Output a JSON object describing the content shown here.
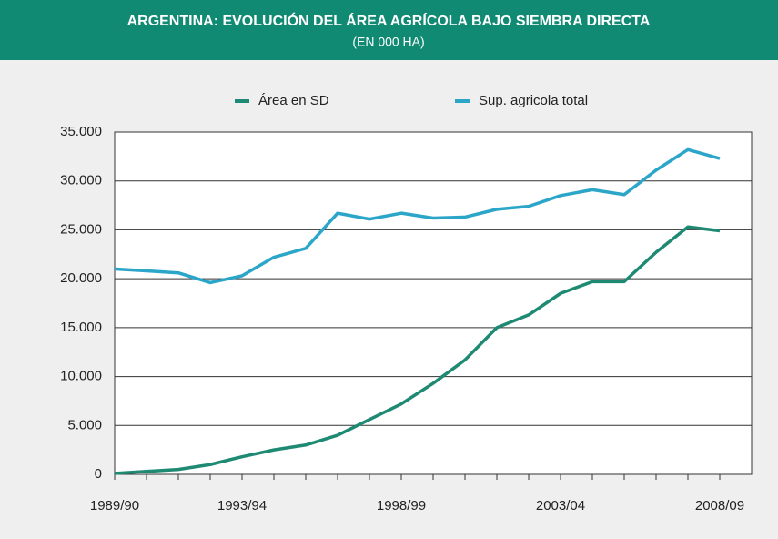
{
  "chart_data": {
    "type": "line",
    "title": "ARGENTINA: EVOLUCIÓN DEL ÁREA AGRÍCOLA BAJO SIEMBRA DIRECTA",
    "subtitle": "(EN 000 HA)",
    "categories": [
      "1989/90",
      null,
      null,
      null,
      "1993/94",
      null,
      null,
      null,
      null,
      "1998/99",
      null,
      null,
      null,
      null,
      "2003/04",
      null,
      null,
      null,
      null,
      "2008/09"
    ],
    "series": [
      {
        "name": "Área en SD",
        "color": "#1e8a74",
        "values": [
          100,
          300,
          500,
          1000,
          1800,
          2500,
          3000,
          4000,
          5600,
          7200,
          9300,
          11700,
          15000,
          16300,
          18500,
          19700,
          19700,
          22700,
          25300,
          24900
        ]
      },
      {
        "name": "Sup. agricola total",
        "color": "#2ba6c9",
        "values": [
          21000,
          20800,
          20600,
          19600,
          20300,
          22200,
          23100,
          26700,
          26100,
          26700,
          26200,
          26300,
          27100,
          27400,
          28500,
          29100,
          28600,
          31100,
          33200,
          32300
        ]
      }
    ],
    "ylim": [
      0,
      35000
    ],
    "yticks": [
      0,
      {
        "value": 5000,
        "label": "5.000"
      },
      {
        "value": 10000,
        "label": "10.000"
      },
      {
        "value": 15000,
        "label": "15.000"
      },
      {
        "value": 20000,
        "label": "20.000"
      },
      {
        "value": 25000,
        "label": "25.000"
      },
      {
        "value": 30000,
        "label": "30.000"
      },
      {
        "value": 35000,
        "label": "35.000"
      }
    ],
    "grid": true,
    "legend": "top"
  }
}
